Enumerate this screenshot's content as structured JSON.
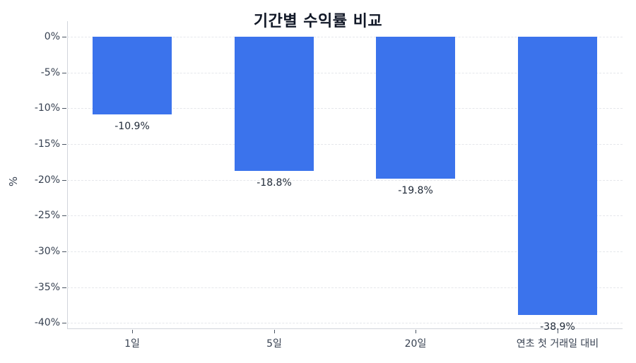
{
  "chart_data": {
    "type": "bar",
    "title": "기간별 수익률 비교",
    "xlabel": "",
    "ylabel": "%",
    "categories": [
      "1일",
      "5일",
      "20일",
      "연초 첫 거래일 대비"
    ],
    "values": [
      -10.9,
      -18.8,
      -19.8,
      -38.9
    ],
    "value_labels": [
      "-10.9%",
      "-18.8%",
      "-19.8%",
      "-38.9%"
    ],
    "ylim": [
      -40,
      0
    ],
    "yticks": [
      0,
      -5,
      -10,
      -15,
      -20,
      -25,
      -30,
      -35,
      -40
    ],
    "ytick_labels": [
      "0%",
      "-5%",
      "-10%",
      "-15%",
      "-20%",
      "-25%",
      "-30%",
      "-35%",
      "-40%"
    ],
    "grid": "horizontal dashed",
    "legend": null,
    "bar_color": "#3b73ec"
  }
}
